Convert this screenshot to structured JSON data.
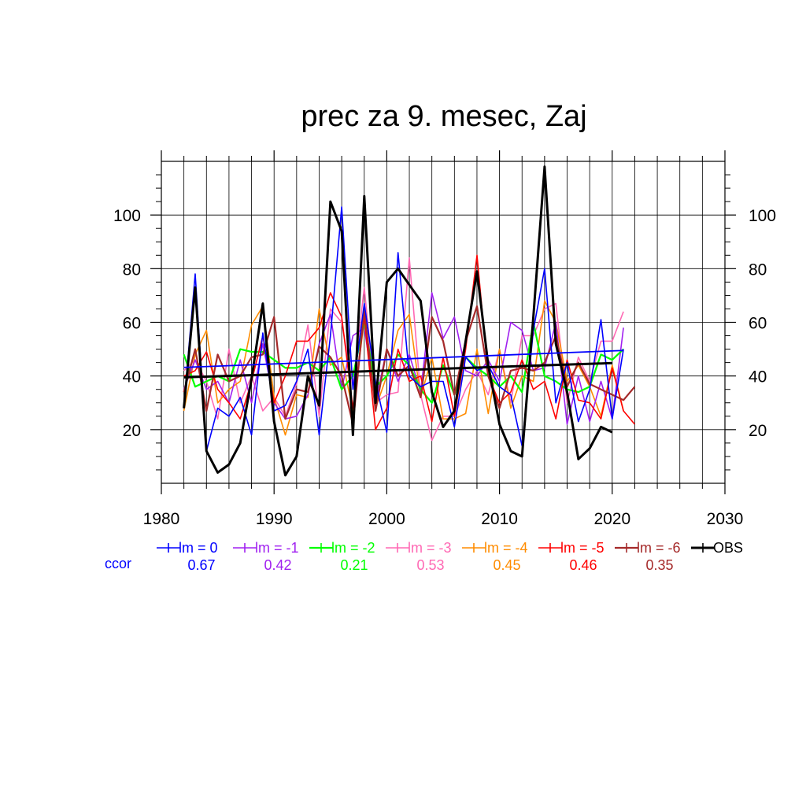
{
  "chart_data": {
    "type": "line",
    "title": "prec za 9. mesec, Zaj",
    "xlim": [
      1980,
      2030
    ],
    "ylim": [
      0,
      120
    ],
    "x_ticks": [
      "1980",
      "1990",
      "2000",
      "2010",
      "2020",
      "2030"
    ],
    "y_ticks": [
      "20",
      "40",
      "60",
      "80",
      "100"
    ],
    "grid": true,
    "legend_position": "bottom",
    "ccor_label": "ccor",
    "ccor_color": "#0000ff",
    "series": [
      {
        "name": "lm = 0",
        "color": "#0000ff",
        "width": 1.6,
        "ccor": "0.67",
        "x": [
          1982,
          1983,
          1984,
          1985,
          1986,
          1987,
          1988,
          1989,
          1990,
          1991,
          1992,
          1993,
          1994,
          1995,
          1996,
          1997,
          1998,
          1999,
          2000,
          2001,
          2002,
          2003,
          2004,
          2005,
          2006,
          2007,
          2008,
          2009,
          2010,
          2011,
          2012,
          2013,
          2014,
          2015,
          2016,
          2017,
          2018,
          2019,
          2020,
          2021
        ],
        "y": [
          29,
          78,
          12,
          28,
          25,
          32,
          18,
          56,
          27,
          29,
          38,
          50,
          18,
          55,
          103,
          35,
          67,
          38,
          19,
          86,
          40,
          36,
          38,
          38,
          21,
          47,
          42,
          44,
          36,
          33,
          14,
          57,
          80,
          30,
          45,
          23,
          35,
          61,
          24,
          50
        ],
        "trend": [
          [
            1982,
            43.2
          ],
          [
            2021,
            49.5
          ]
        ]
      },
      {
        "name": "lm = -1",
        "color": "#a020f0",
        "width": 1.6,
        "ccor": "0.42",
        "x": [
          1982,
          1983,
          1984,
          1985,
          1986,
          1987,
          1988,
          1989,
          1990,
          1991,
          1992,
          1993,
          1994,
          1995,
          1996,
          1997,
          1998,
          1999,
          2000,
          2001,
          2002,
          2003,
          2004,
          2005,
          2006,
          2007,
          2008,
          2009,
          2010,
          2011,
          2012,
          2013,
          2014,
          2015,
          2016,
          2017,
          2018,
          2019,
          2020,
          2021
        ],
        "y": [
          35,
          46,
          35,
          38,
          30,
          46,
          30,
          52,
          30,
          24,
          25,
          33,
          52,
          63,
          35,
          55,
          58,
          30,
          50,
          38,
          48,
          34,
          71,
          54,
          62,
          42,
          40,
          46,
          38,
          60,
          57,
          42,
          43,
          60,
          22,
          40,
          23,
          38,
          24,
          58
        ],
        "trend": null
      },
      {
        "name": "lm = -2",
        "color": "#00ff00",
        "width": 2.2,
        "ccor": "0.21",
        "x": [
          1982,
          1983,
          1984,
          1985,
          1986,
          1987,
          1988,
          1989,
          1990,
          1991,
          1992,
          1993,
          1994,
          1995,
          1996,
          1997,
          1998,
          1999,
          2000,
          2001,
          2002,
          2003,
          2004,
          2005,
          2006,
          2007,
          2008,
          2009,
          2010,
          2011,
          2012,
          2013,
          2014,
          2015,
          2016,
          2017,
          2018,
          2019,
          2020,
          2021
        ],
        "y": [
          48,
          36,
          38,
          40,
          38,
          50,
          49,
          49,
          46,
          43,
          43,
          45,
          42,
          47,
          35,
          40,
          60,
          36,
          40,
          48,
          44,
          35,
          30,
          44,
          33,
          47,
          43,
          40,
          36,
          40,
          34,
          60,
          40,
          38,
          35,
          34,
          36,
          48,
          46,
          50
        ],
        "trend": null
      },
      {
        "name": "lm = -3",
        "color": "#ff69b4",
        "width": 1.6,
        "ccor": "0.53",
        "x": [
          1982,
          1983,
          1984,
          1985,
          1986,
          1987,
          1988,
          1989,
          1990,
          1991,
          1992,
          1993,
          1994,
          1995,
          1996,
          1997,
          1998,
          1999,
          2000,
          2001,
          2002,
          2003,
          2004,
          2005,
          2006,
          2007,
          2008,
          2009,
          2010,
          2011,
          2012,
          2013,
          2014,
          2015,
          2016,
          2017,
          2018,
          2019,
          2020,
          2021
        ],
        "y": [
          42,
          46,
          38,
          24,
          50,
          30,
          40,
          27,
          32,
          25,
          37,
          59,
          25,
          65,
          60,
          36,
          73,
          30,
          33,
          34,
          84,
          33,
          16,
          25,
          25,
          35,
          42,
          33,
          50,
          30,
          55,
          55,
          65,
          67,
          30,
          47,
          38,
          53,
          53,
          64
        ],
        "trend": null
      },
      {
        "name": "lm = -4",
        "color": "#ff8c00",
        "width": 1.6,
        "ccor": "0.45",
        "x": [
          1982,
          1983,
          1984,
          1985,
          1986,
          1987,
          1988,
          1989,
          1990,
          1991,
          1992,
          1993,
          1994,
          1995,
          1996,
          1997,
          1998,
          1999,
          2000,
          2001,
          2002,
          2003,
          2004,
          2005,
          2006,
          2007,
          2008,
          2009,
          2010,
          2011,
          2012,
          2013,
          2014,
          2015,
          2016,
          2017,
          2018,
          2019,
          2020,
          2021,
          2022
        ],
        "y": [
          27,
          48,
          57,
          30,
          35,
          38,
          59,
          66,
          32,
          18,
          33,
          32,
          65,
          44,
          47,
          27,
          61,
          28,
          40,
          57,
          63,
          32,
          47,
          24,
          24,
          26,
          50,
          26,
          50,
          28,
          40,
          38,
          68,
          60,
          38,
          44,
          36,
          25,
          44,
          27,
          null
        ],
        "trend": null
      },
      {
        "name": "lm = -5",
        "color": "#ff0000",
        "width": 1.6,
        "ccor": "0.46",
        "x": [
          1982,
          1983,
          1984,
          1985,
          1986,
          1987,
          1988,
          1989,
          1990,
          1991,
          1992,
          1993,
          1994,
          1995,
          1996,
          1997,
          1998,
          1999,
          2000,
          2001,
          2002,
          2003,
          2004,
          2005,
          2006,
          2007,
          2008,
          2009,
          2010,
          2011,
          2012,
          2013,
          2014,
          2015,
          2016,
          2017,
          2018,
          2019,
          2020,
          2021,
          2022
        ],
        "y": [
          40,
          42,
          49,
          35,
          30,
          24,
          38,
          55,
          30,
          40,
          53,
          53,
          58,
          71,
          62,
          28,
          62,
          20,
          28,
          50,
          38,
          40,
          23,
          47,
          25,
          50,
          85,
          40,
          30,
          34,
          46,
          35,
          38,
          24,
          46,
          31,
          30,
          24,
          43,
          27,
          22
        ],
        "trend": null
      },
      {
        "name": "lm = -6",
        "color": "#a52a2a",
        "width": 2.2,
        "ccor": "0.35",
        "x": [
          1982,
          1983,
          1984,
          1985,
          1986,
          1987,
          1988,
          1989,
          1990,
          1991,
          1992,
          1993,
          1994,
          1995,
          1996,
          1997,
          1998,
          1999,
          2000,
          2001,
          2002,
          2003,
          2004,
          2005,
          2006,
          2007,
          2008,
          2009,
          2010,
          2011,
          2012,
          2013,
          2014,
          2015,
          2016,
          2017,
          2018,
          2019,
          2020,
          2021,
          2022
        ],
        "y": [
          34,
          50,
          27,
          48,
          38,
          40,
          47,
          48,
          62,
          24,
          35,
          34,
          51,
          47,
          40,
          22,
          65,
          27,
          50,
          40,
          44,
          32,
          62,
          53,
          33,
          53,
          66,
          40,
          28,
          42,
          43,
          42,
          45,
          55,
          36,
          45,
          37,
          35,
          33,
          31,
          36
        ],
        "trend": null
      },
      {
        "name": "OBS",
        "color": "#000000",
        "width": 3.0,
        "ccor": "",
        "x": [
          1982,
          1983,
          1984,
          1985,
          1986,
          1987,
          1988,
          1989,
          1990,
          1991,
          1992,
          1993,
          1994,
          1995,
          1996,
          1997,
          1998,
          1999,
          2000,
          2001,
          2002,
          2003,
          2004,
          2005,
          2006,
          2007,
          2008,
          2009,
          2010,
          2011,
          2012,
          2013,
          2014,
          2015,
          2016,
          2017,
          2018,
          2019,
          2020
        ],
        "y": [
          28,
          73,
          12,
          4,
          7,
          15,
          39,
          67,
          23,
          3,
          10,
          40,
          29,
          105,
          94,
          18,
          107,
          30,
          75,
          80,
          74,
          68,
          34,
          21,
          27,
          53,
          79,
          44,
          22,
          12,
          10,
          62,
          118,
          52,
          34,
          9,
          13,
          21,
          19
        ],
        "trend": [
          [
            1982,
            39.5
          ],
          [
            2020,
            44.8
          ]
        ]
      }
    ]
  }
}
